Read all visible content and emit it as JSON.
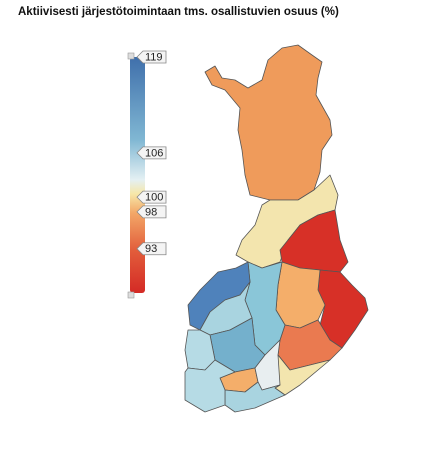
{
  "title": "Aktiivisesti järjestötoimintaan tms. osallistuvien osuus (%)",
  "legend": {
    "range": [
      87,
      119
    ],
    "ticks": [
      119,
      106,
      100,
      98,
      93
    ]
  }
}
